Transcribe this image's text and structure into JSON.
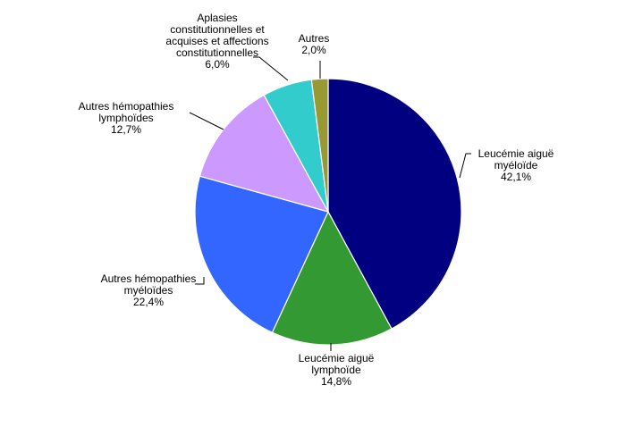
{
  "chart_data": {
    "type": "pie",
    "title": "",
    "slices": [
      {
        "label": [
          "Leucémie aiguë",
          "myéloïde"
        ],
        "value_label": "42,1%",
        "value": 42.1,
        "color": "#000080"
      },
      {
        "label": [
          "Leucémie aiguë",
          "lymphoïde"
        ],
        "value_label": "14,8%",
        "value": 14.8,
        "color": "#339933"
      },
      {
        "label": [
          "Autres hémopathies",
          "myéloïdes"
        ],
        "value_label": "22,4%",
        "value": 22.4,
        "color": "#3366FF"
      },
      {
        "label": [
          "Autres hémopathies",
          "lymphoïdes"
        ],
        "value_label": "12,7%",
        "value": 12.7,
        "color": "#CC99FF"
      },
      {
        "label": [
          "Aplasies",
          "constitutionnelles et",
          "acquises et affections",
          "constitutionnelles"
        ],
        "value_label": "6,0%",
        "value": 6.0,
        "color": "#33CCCC"
      },
      {
        "label": [
          "Autres"
        ],
        "value_label": "2,0%",
        "value": 2.0,
        "color": "#999933"
      }
    ]
  }
}
